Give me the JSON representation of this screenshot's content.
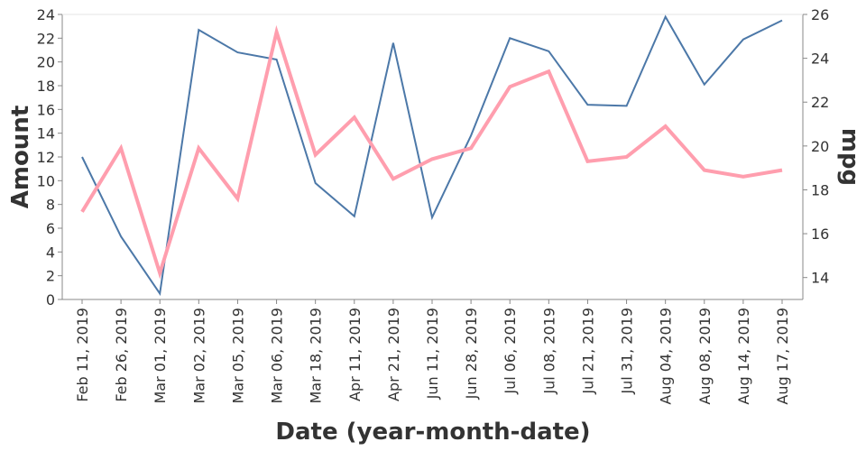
{
  "chart_data": {
    "type": "line",
    "title": "",
    "xlabel": "Date (year-month-date)",
    "ylabel_left": "Amount",
    "ylabel_right": "mpg",
    "categories": [
      "Feb 11, 2019",
      "Feb 26, 2019",
      "Mar 01, 2019",
      "Mar 02, 2019",
      "Mar 05, 2019",
      "Mar 06, 2019",
      "Mar 18, 2019",
      "Apr 11, 2019",
      "Apr 21, 2019",
      "Jun 11, 2019",
      "Jun 28, 2019",
      "Jul 06, 2019",
      "Jul 08, 2019",
      "Jul 21, 2019",
      "Jul 31, 2019",
      "Aug 04, 2019",
      "Aug 08, 2019",
      "Aug 14, 2019",
      "Aug 17, 2019"
    ],
    "ylim_left": [
      0,
      24
    ],
    "yticks_left": [
      0,
      2,
      4,
      6,
      8,
      10,
      12,
      14,
      16,
      18,
      20,
      22,
      24
    ],
    "ylim_right": [
      13,
      26
    ],
    "yticks_right": [
      14,
      16,
      18,
      20,
      22,
      24,
      26
    ],
    "grid": false,
    "legend": "none",
    "series": [
      {
        "axis": "left",
        "color": "#4c78a8",
        "values": [
          12.0,
          5.3,
          0.5,
          22.7,
          20.8,
          20.2,
          9.8,
          7.0,
          21.6,
          6.9,
          13.8,
          22.0,
          20.9,
          16.4,
          16.3,
          23.8,
          18.1,
          21.9,
          23.5
        ]
      },
      {
        "axis": "right",
        "color": "#ff9eae",
        "values": [
          17.0,
          19.9,
          14.2,
          19.9,
          17.6,
          25.2,
          19.6,
          21.3,
          18.5,
          19.4,
          19.9,
          22.7,
          23.4,
          19.3,
          19.5,
          20.9,
          18.9,
          18.6,
          18.9
        ]
      }
    ]
  }
}
